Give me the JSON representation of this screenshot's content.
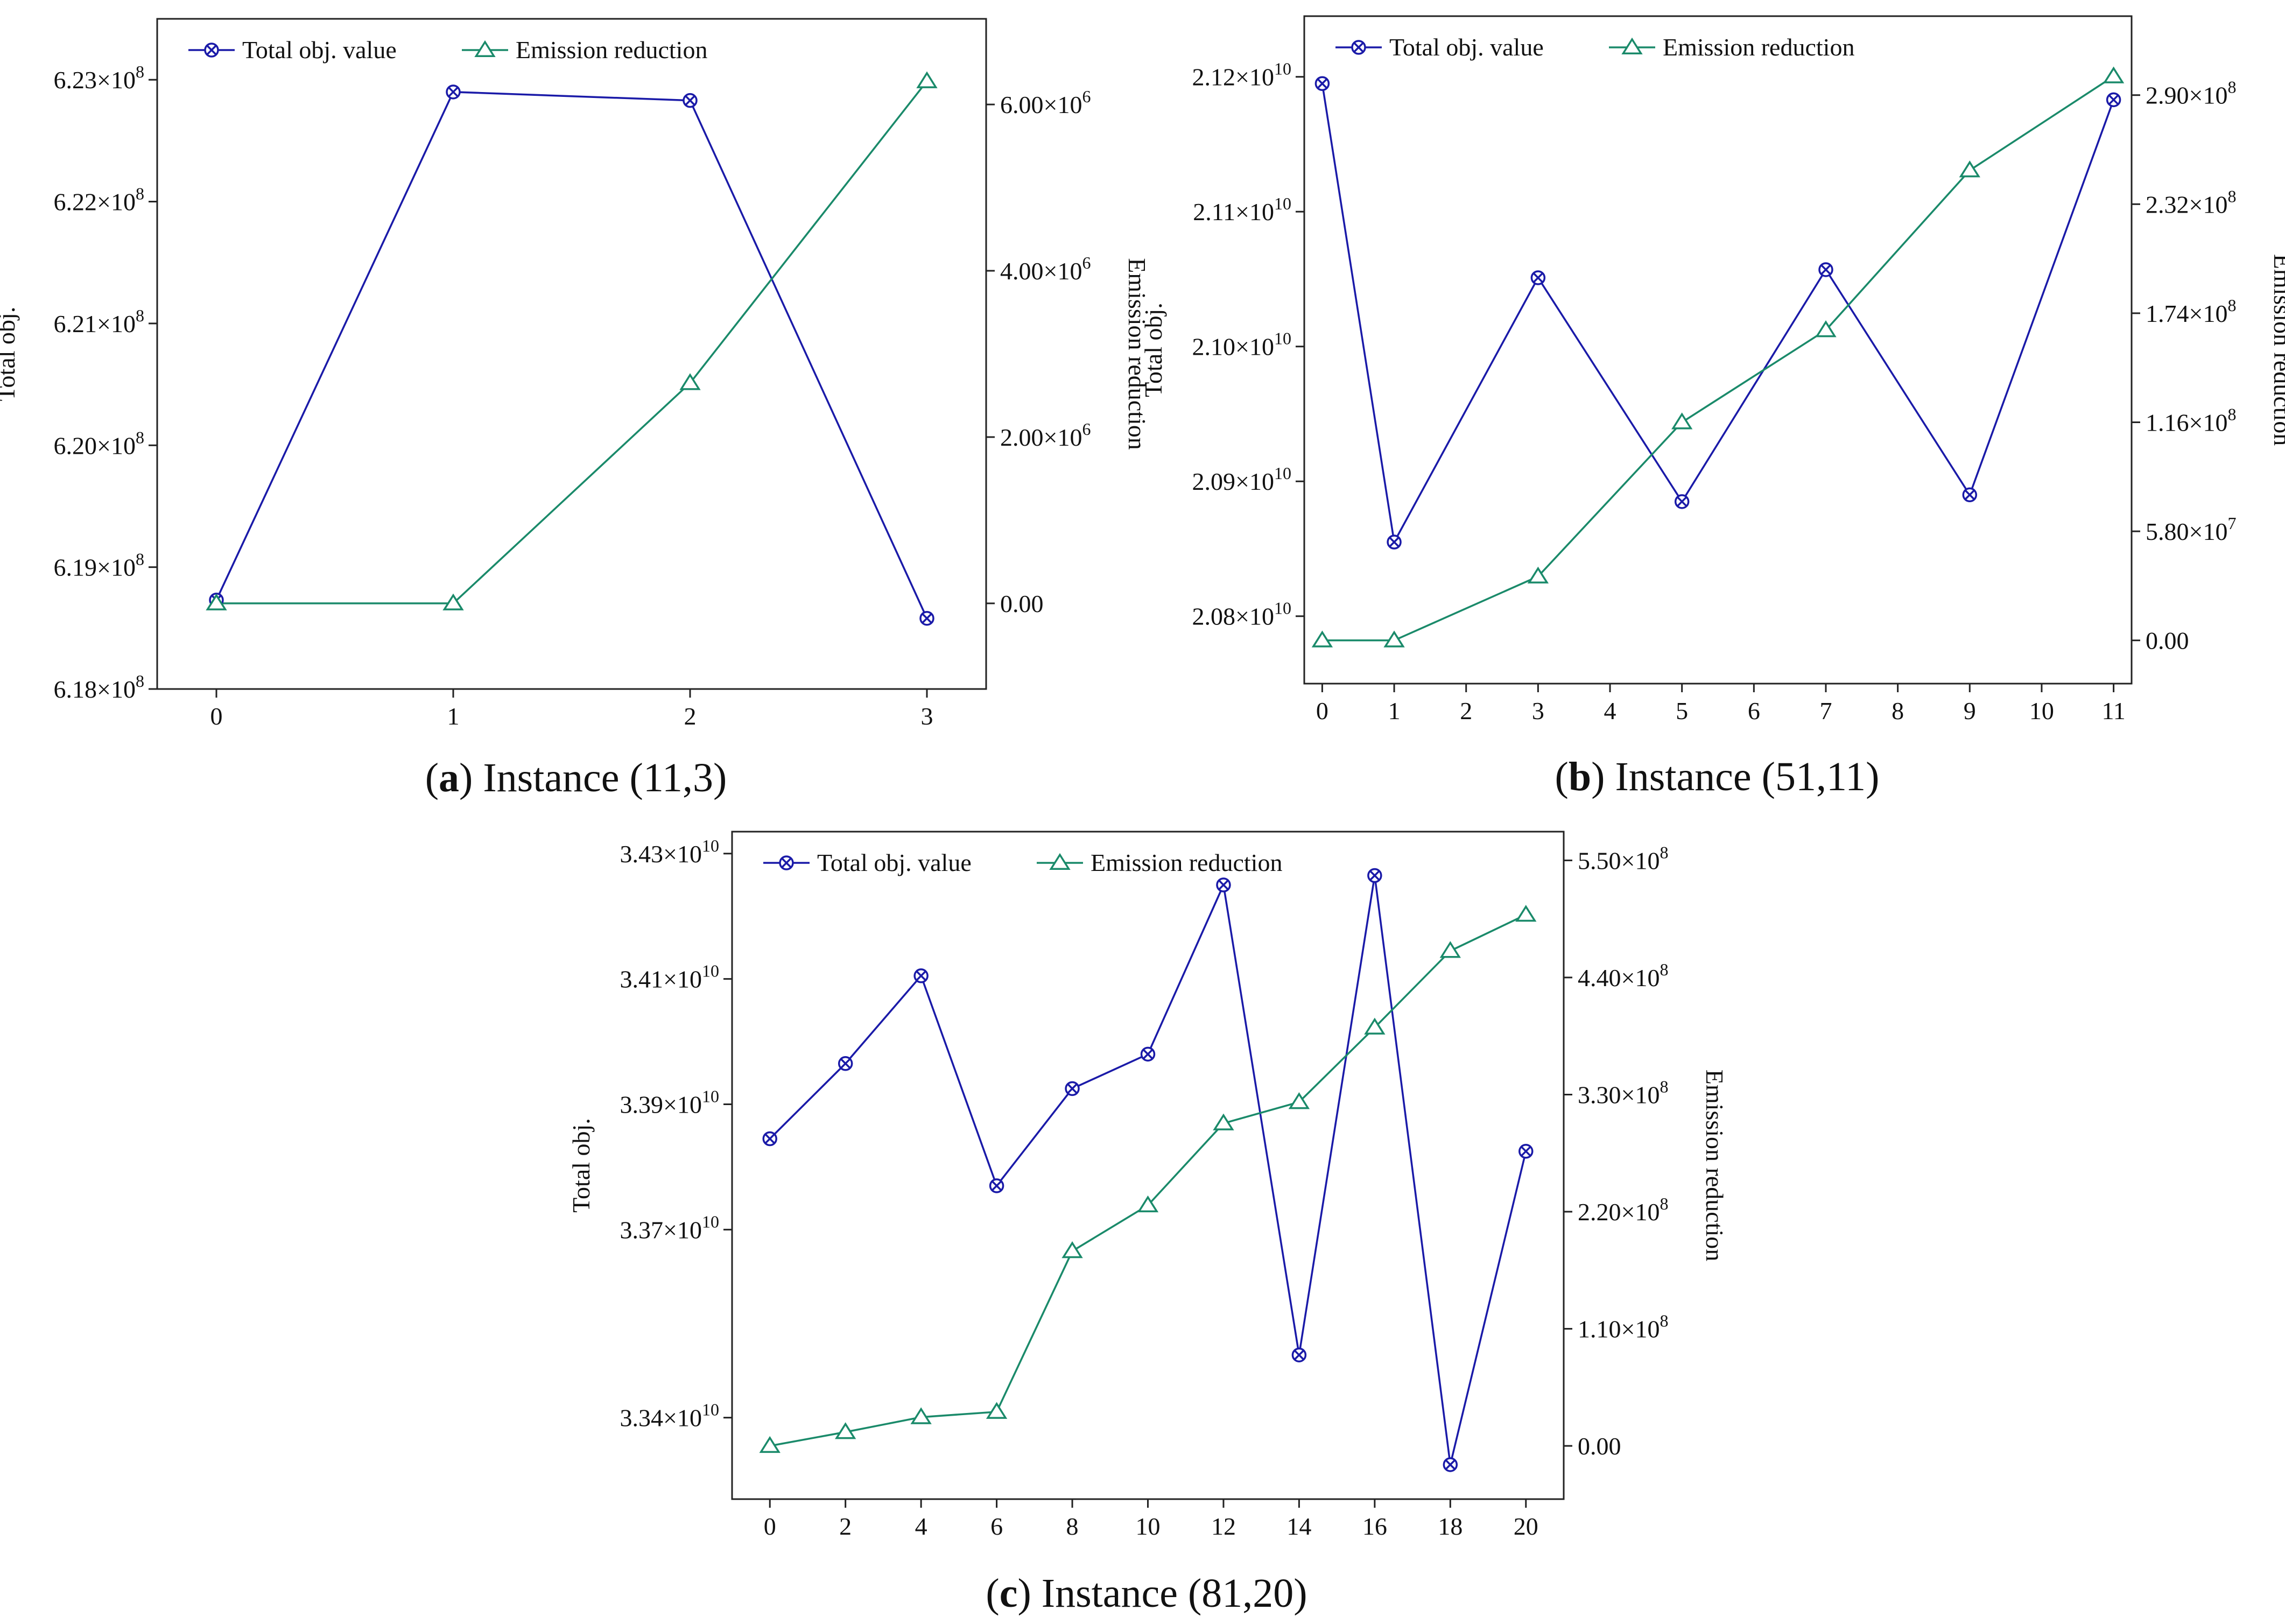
{
  "colors": {
    "obj": "#1a1aa8",
    "emis": "#1a8a6a",
    "axis": "#222222"
  },
  "chart_data": [
    {
      "id": "a",
      "type": "line",
      "caption_letter": "a",
      "caption_text": " Instance (11,3)",
      "ylabel_left": "Total obj.",
      "ylabel_right": "Emission reduction",
      "legend": [
        "Total obj. value",
        "Emission reduction"
      ],
      "x_ticks": [
        "0",
        "1",
        "2",
        "3"
      ],
      "x_range": [
        -0.25,
        3.25
      ],
      "y_left_ticks": [
        {
          "value": 618000000,
          "mant": "6.18",
          "exp": "8"
        },
        {
          "value": 619000000,
          "mant": "6.19",
          "exp": "8"
        },
        {
          "value": 620000000,
          "mant": "6.20",
          "exp": "8"
        },
        {
          "value": 621000000,
          "mant": "6.21",
          "exp": "8"
        },
        {
          "value": 622000000,
          "mant": "6.22",
          "exp": "8"
        },
        {
          "value": 623000000,
          "mant": "6.23",
          "exp": "8"
        }
      ],
      "y_left_range": [
        618000000,
        623500000
      ],
      "y_right_ticks": [
        {
          "value": 0,
          "mant": "0.00",
          "exp": ""
        },
        {
          "value": 2000000,
          "mant": "2.00",
          "exp": "6"
        },
        {
          "value": 4000000,
          "mant": "4.00",
          "exp": "6"
        },
        {
          "value": 6000000,
          "mant": "6.00",
          "exp": "6"
        }
      ],
      "y_right_range": [
        -1030000,
        7030000
      ],
      "series": [
        {
          "name": "Total obj. value",
          "axis": "left",
          "x": [
            0,
            1,
            2,
            3
          ],
          "values": [
            618730000,
            622900000,
            622830000,
            618580000
          ]
        },
        {
          "name": "Emission reduction",
          "axis": "right",
          "x": [
            0,
            1,
            2,
            3
          ],
          "values": [
            0,
            0,
            2650000,
            6280000
          ]
        }
      ]
    },
    {
      "id": "b",
      "type": "line",
      "caption_letter": "b",
      "caption_text": " Instance (51,11)",
      "ylabel_left": "Total obj.",
      "ylabel_right": "Emission reduction",
      "legend": [
        "Total obj. value",
        "Emission reduction"
      ],
      "x_ticks": [
        "0",
        "1",
        "2",
        "3",
        "4",
        "5",
        "6",
        "7",
        "8",
        "9",
        "10",
        "11"
      ],
      "x_range": [
        -0.25,
        11.25
      ],
      "y_left_ticks": [
        {
          "value": 20800000000,
          "mant": "2.08",
          "exp": "10"
        },
        {
          "value": 20900000000,
          "mant": "2.09",
          "exp": "10"
        },
        {
          "value": 21000000000,
          "mant": "2.10",
          "exp": "10"
        },
        {
          "value": 21100000000,
          "mant": "2.11",
          "exp": "10"
        },
        {
          "value": 21200000000,
          "mant": "2.12",
          "exp": "10"
        }
      ],
      "y_left_range": [
        20750000000,
        21245000000
      ],
      "y_right_ticks": [
        {
          "value": 0,
          "mant": "0.00",
          "exp": ""
        },
        {
          "value": 58000000,
          "mant": "5.80",
          "exp": "7"
        },
        {
          "value": 116000000,
          "mant": "1.16",
          "exp": "8"
        },
        {
          "value": 174000000,
          "mant": "1.74",
          "exp": "8"
        },
        {
          "value": 232000000,
          "mant": "2.32",
          "exp": "8"
        },
        {
          "value": 290000000,
          "mant": "2.90",
          "exp": "8"
        }
      ],
      "y_right_range": [
        -23000000,
        332000000
      ],
      "series": [
        {
          "name": "Total obj. value",
          "axis": "left",
          "x": [
            0,
            1,
            3,
            5,
            7,
            9,
            11
          ],
          "values": [
            21195000000,
            20855000000,
            21051000000,
            20885000000,
            21057000000,
            20890000000,
            21183000000
          ]
        },
        {
          "name": "Emission reduction",
          "axis": "right",
          "x": [
            0,
            1,
            3,
            5,
            7,
            9,
            11
          ],
          "values": [
            0,
            0,
            34000000,
            116000000,
            165000000,
            250000000,
            300000000
          ]
        }
      ]
    },
    {
      "id": "c",
      "type": "line",
      "caption_letter": "c",
      "caption_text": " Instance (81,20)",
      "ylabel_left": "Total obj.",
      "ylabel_right": "Emission reduction",
      "legend": [
        "Total obj. value",
        "Emission reduction"
      ],
      "x_ticks": [
        "0",
        "2",
        "4",
        "6",
        "8",
        "10",
        "12",
        "14",
        "16",
        "18",
        "20"
      ],
      "x_range": [
        -1,
        21
      ],
      "y_left_ticks": [
        {
          "value": 33400000000,
          "mant": "3.34",
          "exp": "10"
        },
        {
          "value": 33700000000,
          "mant": "3.37",
          "exp": "10"
        },
        {
          "value": 33900000000,
          "mant": "3.39",
          "exp": "10"
        },
        {
          "value": 34100000000,
          "mant": "3.41",
          "exp": "10"
        },
        {
          "value": 34300000000,
          "mant": "3.43",
          "exp": "10"
        }
      ],
      "y_left_range": [
        33270000000,
        34335000000
      ],
      "y_right_ticks": [
        {
          "value": 0,
          "mant": "0.00",
          "exp": ""
        },
        {
          "value": 110000000,
          "mant": "1.10",
          "exp": "8"
        },
        {
          "value": 220000000,
          "mant": "2.20",
          "exp": "8"
        },
        {
          "value": 330000000,
          "mant": "3.30",
          "exp": "8"
        },
        {
          "value": 440000000,
          "mant": "4.40",
          "exp": "8"
        },
        {
          "value": 550000000,
          "mant": "5.50",
          "exp": "8"
        }
      ],
      "y_right_range": [
        -50000000,
        577000000
      ],
      "series": [
        {
          "name": "Total obj. value",
          "axis": "left",
          "x": [
            0,
            2,
            4,
            6,
            8,
            10,
            12,
            14,
            16,
            18,
            20
          ],
          "values": [
            33845000000,
            33965000000,
            34105000000,
            33770000000,
            33925000000,
            33980000000,
            34250000000,
            33500000000,
            34265000000,
            33325000000,
            33825000000
          ]
        },
        {
          "name": "Emission reduction",
          "axis": "right",
          "x": [
            0,
            2,
            4,
            6,
            8,
            10,
            12,
            14,
            16,
            18,
            20
          ],
          "values": [
            0,
            13000000,
            27000000,
            32000000,
            183000000,
            226000000,
            303000000,
            323000000,
            393000000,
            465000000,
            499000000
          ]
        }
      ]
    }
  ]
}
